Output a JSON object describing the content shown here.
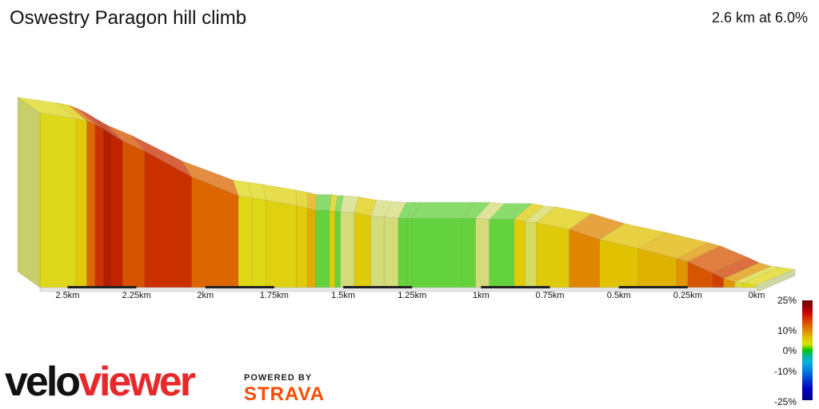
{
  "header": {
    "title": "Oswestry Paragon hill climb",
    "summary": "2.6 km at 6.0%"
  },
  "legend": {
    "labels": [
      "25%",
      "10%",
      "0%",
      "-10%",
      "-25%"
    ]
  },
  "brand": {
    "logo_part1": "velo",
    "logo_part2": "viewer",
    "powered_by": "POWERED BY",
    "strava": "STRAVA"
  },
  "colors": {
    "gradient_low": "#d4db7a",
    "gradient_yellow": "#e0d800",
    "gradient_orange": "#e08800",
    "gradient_red_orange": "#dc6600",
    "gradient_green": "#00c800",
    "strava_orange": "#fc4c02",
    "viewer_red": "#e8282b"
  },
  "chart_data": {
    "type": "area",
    "xlabel": "",
    "ylabel": "",
    "x_unit": "km",
    "x_axis_reversed": true,
    "xlim": [
      0,
      2.6
    ],
    "x_ticks": [
      {
        "value": 2.5,
        "label": "2.5km"
      },
      {
        "value": 2.25,
        "label": "2.25km"
      },
      {
        "value": 2.0,
        "label": "2km"
      },
      {
        "value": 1.75,
        "label": "1.75km"
      },
      {
        "value": 1.5,
        "label": "1.5km"
      },
      {
        "value": 1.25,
        "label": "1.25km"
      },
      {
        "value": 1.0,
        "label": "1km"
      },
      {
        "value": 0.75,
        "label": "0.75km"
      },
      {
        "value": 0.5,
        "label": "0.5km"
      },
      {
        "value": 0.25,
        "label": "0.25km"
      },
      {
        "value": 0.0,
        "label": "0km"
      }
    ],
    "elevation_relative_m": {
      "x": [
        2.6,
        2.47,
        2.43,
        2.4,
        2.37,
        2.34,
        2.3,
        2.22,
        2.05,
        1.88,
        1.83,
        1.78,
        1.67,
        1.63,
        1.6,
        1.55,
        1.53,
        1.51,
        1.46,
        1.4,
        1.35,
        1.3,
        1.27,
        1.25,
        1.07,
        1.02,
        0.97,
        0.88,
        0.84,
        0.8,
        0.68,
        0.57,
        0.43,
        0.29,
        0.25,
        0.16,
        0.12,
        0.08,
        0.05,
        0.0
      ],
      "y": [
        156,
        151,
        149,
        146,
        142,
        137,
        131,
        122,
        99,
        82,
        80,
        78,
        73,
        71,
        69,
        69,
        68,
        68,
        67,
        64,
        63,
        62,
        62,
        62,
        62,
        62,
        61,
        61,
        59,
        58,
        52,
        43,
        35,
        26,
        23,
        13,
        8,
        5,
        4,
        2
      ]
    },
    "gradient_scale_percent": {
      "max": 25,
      "min": -25,
      "ticks": [
        25,
        10,
        0,
        -10,
        -25
      ]
    }
  }
}
